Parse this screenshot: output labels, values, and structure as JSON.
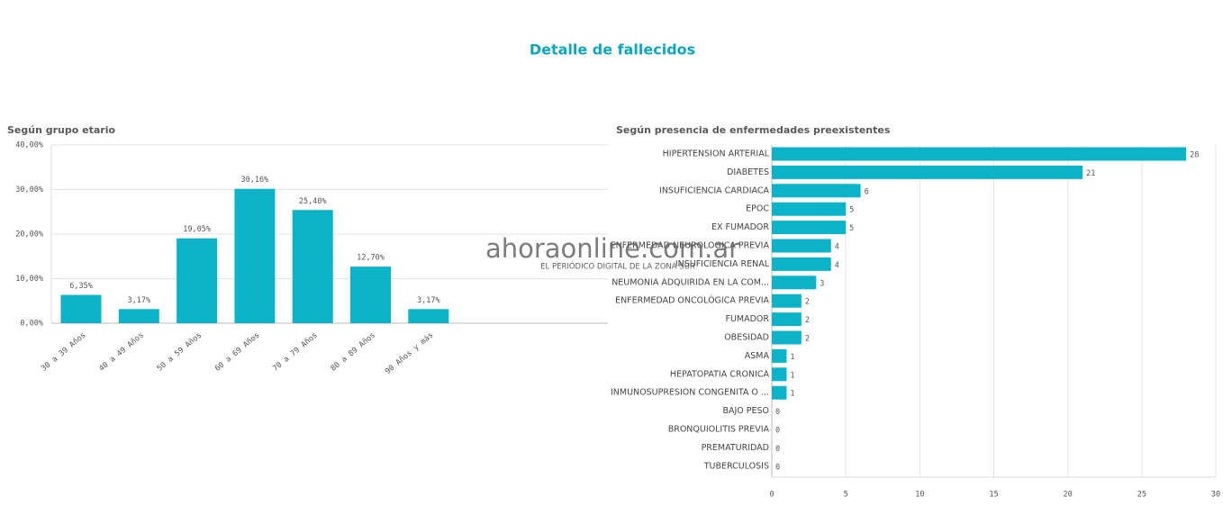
{
  "title": "Detalle de fallecidos",
  "watermark": {
    "text": "ahoraonline.com.ar",
    "tagline": "EL PERIÓDICO DIGITAL DE LA ZONA SUR"
  },
  "chart_data": [
    {
      "type": "bar",
      "title": "Según grupo etario",
      "color": "#0bb2c8",
      "grid": true,
      "categories": [
        "30 a 39 Años",
        "40 a 49 Años",
        "50 a 59 Años",
        "60 a 69 Años",
        "70 a 79 Años",
        "80 a 89 Años",
        "90 Años y más"
      ],
      "values": [
        6.35,
        3.17,
        19.05,
        30.16,
        25.4,
        12.7,
        3.17
      ],
      "value_labels": [
        "6,35%",
        "3,17%",
        "19,05%",
        "30,16%",
        "25,40%",
        "12,70%",
        "3,17%"
      ],
      "ylim": [
        0,
        40
      ],
      "yticks": [
        {
          "value": 0,
          "label": "0,00%"
        },
        {
          "value": 10,
          "label": "10,00%"
        },
        {
          "value": 20,
          "label": "20,00%"
        },
        {
          "value": 30,
          "label": "30,00%"
        },
        {
          "value": 40,
          "label": "40,00%"
        }
      ]
    },
    {
      "type": "barh",
      "title": "Según presencia de enfermedades preexistentes",
      "color": "#0bb2c8",
      "grid": true,
      "categories": [
        "HIPERTENSION ARTERIAL",
        "DIABETES",
        "INSUFICIENCIA CARDIACA",
        "EPOC",
        "EX FUMADOR",
        "ENFERMEDAD NEUROLOGICA PREVIA",
        "INSUFICIENCIA RENAL",
        "NEUMONIA ADQUIRIDA EN LA COM...",
        "ENFERMEDAD ONCOLÓGICA PREVIA",
        "FUMADOR",
        "OBESIDAD",
        "ASMA",
        "HEPATOPATIA CRONICA",
        "INMUNOSUPRESION CONGENITA O ...",
        "BAJO PESO",
        "BRONQUIOLITIS PREVIA",
        "PREMATURIDAD",
        "TUBERCULOSIS"
      ],
      "values": [
        28,
        21,
        6,
        5,
        5,
        4,
        4,
        3,
        2,
        2,
        2,
        1,
        1,
        1,
        0,
        0,
        0,
        0
      ],
      "xlim": [
        0,
        30
      ],
      "xticks": [
        0,
        5,
        10,
        15,
        20,
        25,
        30
      ]
    }
  ]
}
